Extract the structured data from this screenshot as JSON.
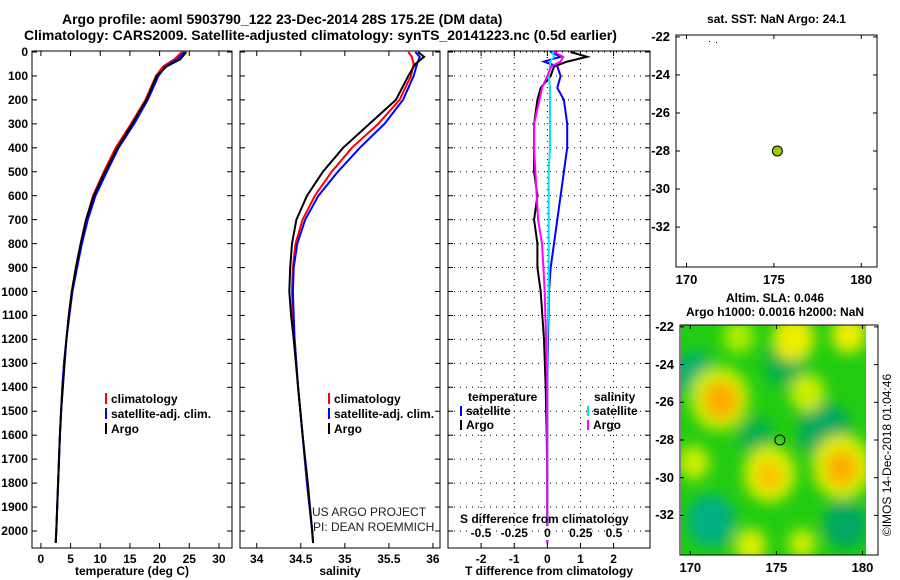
{
  "header": {
    "title_line1": "Argo profile: aoml 5903790_122 23-Dec-2014 28S 175.2E (DM data)",
    "title_line2": "Climatology: CARS2009. Satellite-adjusted climatology: synTS_20141223.nc (0.5d earlier)"
  },
  "credit": {
    "line1": "US ARGO PROJECT",
    "line2": "PI: DEAN ROEMMICH"
  },
  "watermark": "©IMOS 14-Dec-2018 01:04:46",
  "colors": {
    "climatology": "#ff0000",
    "satellite": "#0000ff",
    "argo": "#000000",
    "s_satellite": "#00e5ee",
    "s_argo": "#ff00ff"
  },
  "chart_data": [
    {
      "type": "line",
      "id": "temperature",
      "xlabel": "temperature (deg C)",
      "ylabel": "",
      "xlim": [
        -1.5,
        32.2
      ],
      "ylim": [
        2080,
        0
      ],
      "xticks": [
        "0",
        "5",
        "10",
        "15",
        "20",
        "25",
        "30"
      ],
      "xtick_values": [
        0,
        5,
        10,
        15,
        20,
        25,
        30
      ],
      "yticks": [
        "0",
        "100",
        "200",
        "300",
        "400",
        "500",
        "600",
        "700",
        "800",
        "900",
        "1000",
        "1100",
        "1200",
        "1300",
        "1400",
        "1500",
        "1600",
        "1700",
        "1800",
        "1900",
        "2000"
      ],
      "legend": [
        "climatology",
        "satellite-adj. clim.",
        "Argo"
      ],
      "depth": [
        0,
        30,
        60,
        100,
        200,
        300,
        400,
        500,
        600,
        700,
        800,
        900,
        1000,
        1100,
        1200,
        1300,
        1400,
        1500,
        1600,
        1800,
        2000,
        2050
      ],
      "series": [
        {
          "name": "climatology",
          "values": [
            23.8,
            22.5,
            20.6,
            19.4,
            17.6,
            15.2,
            12.6,
            10.6,
            8.8,
            7.6,
            6.7,
            5.9,
            5.2,
            4.7,
            4.3,
            3.9,
            3.6,
            3.4,
            3.2,
            2.9,
            2.6,
            2.5
          ]
        },
        {
          "name": "satellite-adj. clim.",
          "values": [
            24.2,
            23.0,
            21.0,
            19.8,
            18.0,
            15.7,
            13.1,
            11.1,
            9.2,
            7.9,
            6.9,
            6.1,
            5.3,
            4.8,
            4.3,
            3.9,
            3.6,
            3.4,
            3.2,
            2.9,
            2.6,
            2.5
          ]
        },
        {
          "name": "Argo",
          "values": [
            24.5,
            23.5,
            21.2,
            19.5,
            17.8,
            15.4,
            12.9,
            10.8,
            8.9,
            7.6,
            6.7,
            5.9,
            5.2,
            4.7,
            4.3,
            4.0,
            3.7,
            3.4,
            3.2,
            2.9,
            2.6,
            2.5
          ]
        }
      ]
    },
    {
      "type": "line",
      "id": "salinity",
      "xlabel": "salinity",
      "xlim": [
        33.81,
        36.08
      ],
      "ylim": [
        2080,
        0
      ],
      "xticks": [
        "34",
        "34.5",
        "35",
        "35.5",
        "36"
      ],
      "xtick_values": [
        34,
        34.5,
        35,
        35.5,
        36
      ],
      "legend": [
        "climatology",
        "satellite-adj. clim.",
        "Argo"
      ],
      "depth": [
        0,
        20,
        50,
        100,
        200,
        300,
        400,
        500,
        600,
        700,
        800,
        900,
        1000,
        1100,
        1200,
        1400,
        1600,
        1800,
        2000,
        2050
      ],
      "series": [
        {
          "name": "climatology",
          "values": [
            35.72,
            35.76,
            35.78,
            35.75,
            35.62,
            35.38,
            35.08,
            34.85,
            34.66,
            34.52,
            34.44,
            34.41,
            34.4,
            34.41,
            34.43,
            34.47,
            34.52,
            34.57,
            34.63,
            34.64
          ]
        },
        {
          "name": "satellite-adj. clim.",
          "values": [
            35.8,
            35.85,
            35.82,
            35.78,
            35.66,
            35.45,
            35.17,
            34.92,
            34.7,
            34.55,
            34.46,
            34.42,
            34.41,
            34.42,
            34.43,
            34.47,
            34.52,
            34.57,
            34.63,
            34.64
          ]
        },
        {
          "name": "Argo",
          "values": [
            35.83,
            35.9,
            35.8,
            35.72,
            35.58,
            35.28,
            34.98,
            34.75,
            34.57,
            34.45,
            34.4,
            34.38,
            34.37,
            34.39,
            34.42,
            34.47,
            34.52,
            34.58,
            34.63,
            34.64
          ]
        }
      ]
    },
    {
      "type": "line",
      "id": "differences",
      "xlabel": "T difference from climatology",
      "x2label": "S difference from climatology",
      "xlim": [
        -3,
        3.1
      ],
      "ylim": [
        2080,
        0
      ],
      "xticks": [
        "-2",
        "-1",
        "0",
        "1",
        "2"
      ],
      "xtick_values": [
        -2,
        -1,
        0,
        1,
        2
      ],
      "x2ticks": [
        "-0.5",
        "-0.25",
        "0",
        "0.25",
        "0.5"
      ],
      "x2tick_values": [
        -0.5,
        -0.25,
        0,
        0.25,
        0.5
      ],
      "legend_t_title": "temperature",
      "legend_s_title": "salinity",
      "legend_t": [
        "satellite",
        "Argo"
      ],
      "legend_s": [
        "satellite",
        "Argo"
      ],
      "depth": [
        0,
        20,
        40,
        60,
        100,
        150,
        200,
        300,
        400,
        500,
        600,
        700,
        800,
        900,
        1000,
        1200,
        1400,
        1600,
        1800,
        2000,
        2050
      ],
      "series": [
        {
          "name": "T satellite",
          "axis": "T",
          "values": [
            0.1,
            0.4,
            -0.1,
            0.3,
            0.4,
            0.3,
            0.5,
            0.6,
            0.6,
            0.5,
            0.4,
            0.3,
            0.2,
            0.1,
            0.05,
            0.02,
            0.0,
            0.0,
            0.0,
            0.0,
            0.0
          ]
        },
        {
          "name": "T Argo",
          "axis": "T",
          "values": [
            0.7,
            1.2,
            0.6,
            0.2,
            0.1,
            -0.2,
            -0.3,
            -0.4,
            -0.4,
            -0.4,
            -0.3,
            -0.4,
            -0.3,
            -0.3,
            -0.2,
            -0.1,
            -0.05,
            -0.02,
            0.0,
            0.0,
            0.0
          ]
        },
        {
          "name": "S satellite",
          "axis": "S",
          "values": [
            0.04,
            0.05,
            0.02,
            0.02,
            0.01,
            0.02,
            0.02,
            0.02,
            0.02,
            0.01,
            0.01,
            0.01,
            0.01,
            0.01,
            0.01,
            0.0,
            0.0,
            0.0,
            0.0,
            0.0,
            0.0
          ]
        },
        {
          "name": "S Argo",
          "axis": "S",
          "values": [
            0.05,
            0.12,
            0.1,
            0.03,
            0.0,
            -0.04,
            -0.06,
            -0.1,
            -0.1,
            -0.09,
            -0.08,
            -0.07,
            -0.04,
            -0.03,
            -0.02,
            -0.01,
            0.0,
            0.0,
            0.0,
            0.0,
            0.0
          ]
        }
      ]
    },
    {
      "type": "scatter",
      "id": "sst-map",
      "title": "sat. SST: NaN Argo: 24.1",
      "xlim": [
        169.4,
        180.9
      ],
      "ylim": [
        -34.1,
        -21.9
      ],
      "xticks": [
        "170",
        "175",
        "180"
      ],
      "xtick_values": [
        170,
        175,
        180
      ],
      "yticks": [
        "-22",
        "-24",
        "-26",
        "-28",
        "-30",
        "-32"
      ],
      "ytick_values": [
        -22,
        -24,
        -26,
        -28,
        -30,
        -32
      ],
      "point": {
        "lon": 175.2,
        "lat": -28.0,
        "color": "#99cc00"
      }
    },
    {
      "type": "heatmap",
      "id": "sla-map",
      "title_line1": "Altim. SLA: 0.046",
      "title_line2": "Argo h1000: 0.0016 h2000: NaN",
      "xlim": [
        169.4,
        180.9
      ],
      "ylim": [
        -34.1,
        -21.9
      ],
      "xticks": [
        "170",
        "175",
        "180"
      ],
      "xtick_values": [
        170,
        175,
        180
      ],
      "yticks": [
        "-22",
        "-24",
        "-26",
        "-28",
        "-30",
        "-32"
      ],
      "ytick_values": [
        -22,
        -24,
        -26,
        -28,
        -30,
        -32
      ],
      "point": {
        "lon": 175.2,
        "lat": -28.0
      },
      "blobs": [
        {
          "lon": 170.3,
          "lat": -24.5,
          "r": 1.2,
          "color": "#00b070"
        },
        {
          "lon": 171.2,
          "lat": -32.3,
          "r": 1.4,
          "color": "#00b080"
        },
        {
          "lon": 177.8,
          "lat": -27.5,
          "r": 1.5,
          "color": "#00a860"
        },
        {
          "lon": 179.0,
          "lat": -32.5,
          "r": 1.3,
          "color": "#00a860"
        },
        {
          "lon": 175.5,
          "lat": -24.0,
          "r": 1.2,
          "color": "#00b050"
        },
        {
          "lon": 173.8,
          "lat": -27.8,
          "r": 1.0,
          "color": "#00b050"
        },
        {
          "lon": 171.7,
          "lat": -25.8,
          "r": 1.7,
          "color": "#ccee00"
        },
        {
          "lon": 171.8,
          "lat": -25.9,
          "r": 1.0,
          "color": "#ffaa00"
        },
        {
          "lon": 174.6,
          "lat": -29.8,
          "r": 1.5,
          "color": "#ddee00"
        },
        {
          "lon": 174.6,
          "lat": -29.9,
          "r": 0.7,
          "color": "#ffbb00"
        },
        {
          "lon": 178.8,
          "lat": -29.4,
          "r": 1.7,
          "color": "#ddee00"
        },
        {
          "lon": 178.8,
          "lat": -29.5,
          "r": 0.9,
          "color": "#ffaa00"
        },
        {
          "lon": 176.0,
          "lat": -22.6,
          "r": 1.2,
          "color": "#eeee00"
        },
        {
          "lon": 179.2,
          "lat": -22.4,
          "r": 1.0,
          "color": "#eeee00"
        },
        {
          "lon": 176.8,
          "lat": -25.5,
          "r": 1.0,
          "color": "#ccee00"
        },
        {
          "lon": 170.2,
          "lat": -29.2,
          "r": 0.9,
          "color": "#ccee00"
        },
        {
          "lon": 173.5,
          "lat": -33.6,
          "r": 0.9,
          "color": "#ddee00"
        },
        {
          "lon": 176.5,
          "lat": -33.5,
          "r": 0.8,
          "color": "#ccee00"
        },
        {
          "lon": 172.8,
          "lat": -22.5,
          "r": 0.9,
          "color": "#aaee00"
        }
      ]
    }
  ]
}
